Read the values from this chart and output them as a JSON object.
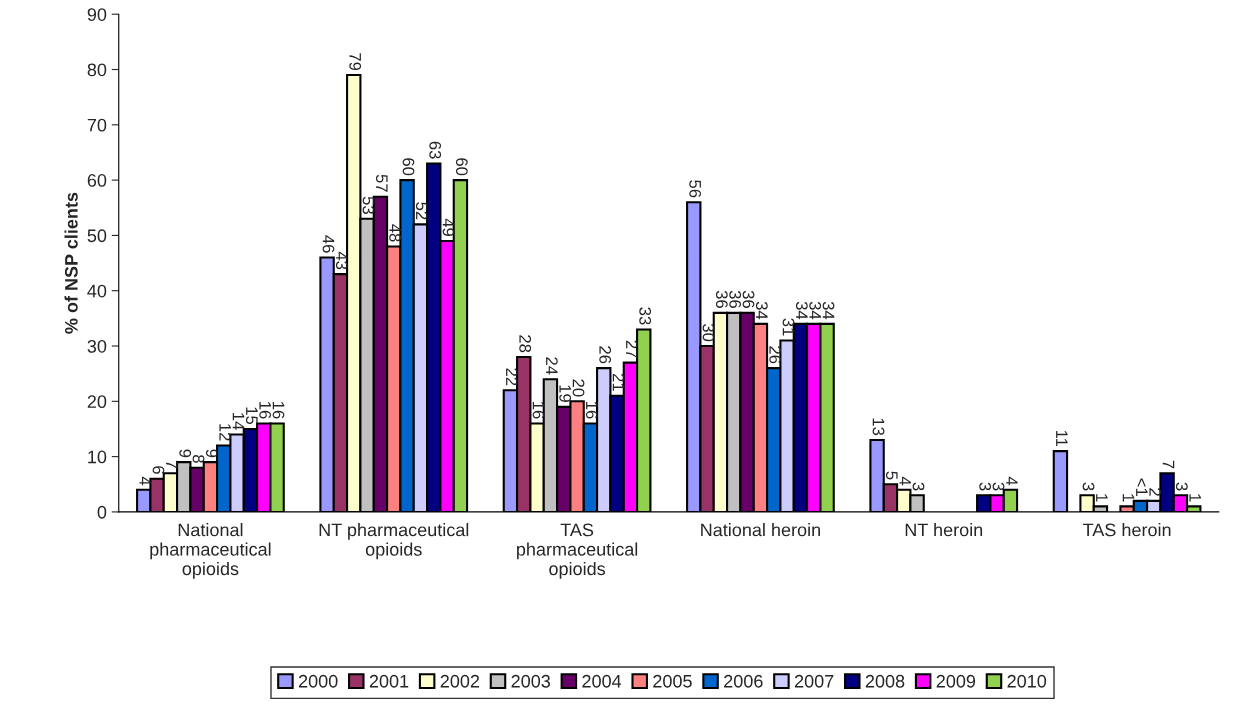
{
  "chart_data": {
    "type": "bar",
    "ylabel": "% of NSP clients",
    "categories": [
      "National\npharmaceutical\nopioids",
      "NT pharmaceutical\nopioids",
      "TAS\npharmaceutical\nopioids",
      "National heroin",
      "NT heroin",
      "TAS heroin"
    ],
    "ylim": [
      0,
      90
    ],
    "yticks": [
      0,
      10,
      20,
      30,
      40,
      50,
      60,
      70,
      80,
      90
    ],
    "grid": false,
    "legend": "bottom",
    "series": [
      {
        "name": "2000",
        "color": "#9999ff",
        "values": [
          4,
          46,
          22,
          56,
          13,
          11
        ],
        "value_labels": [
          "4",
          "46",
          "22",
          "56",
          "13",
          "11"
        ]
      },
      {
        "name": "2001",
        "color": "#993366",
        "values": [
          6,
          43,
          28,
          30,
          5,
          null
        ],
        "value_labels": [
          "6",
          "43",
          "28",
          "30",
          "5",
          null
        ]
      },
      {
        "name": "2002",
        "color": "#ffffcc",
        "values": [
          7,
          79,
          16,
          36,
          4,
          3
        ],
        "value_labels": [
          "7",
          "79",
          "16",
          "36",
          "4",
          "3"
        ]
      },
      {
        "name": "2003",
        "color": "#c0c0c0",
        "values": [
          9,
          53,
          24,
          36,
          3,
          1
        ],
        "value_labels": [
          "9",
          "53",
          "24",
          "36",
          "3",
          "1"
        ]
      },
      {
        "name": "2004",
        "color": "#660066",
        "values": [
          8,
          57,
          19,
          36,
          null,
          null
        ],
        "value_labels": [
          "8",
          "57",
          "19",
          "36",
          null,
          null
        ]
      },
      {
        "name": "2005",
        "color": "#ff8080",
        "values": [
          9,
          48,
          20,
          34,
          null,
          1
        ],
        "value_labels": [
          "9",
          "48",
          "20",
          "34",
          null,
          "1"
        ]
      },
      {
        "name": "2006",
        "color": "#0066cc",
        "values": [
          12,
          60,
          16,
          26,
          null,
          2
        ],
        "value_labels": [
          "12",
          "60",
          "16",
          "26",
          null,
          "<1"
        ]
      },
      {
        "name": "2007",
        "color": "#ccccff",
        "values": [
          14,
          52,
          26,
          31,
          null,
          2
        ],
        "value_labels": [
          "14",
          "52",
          "26",
          "31",
          null,
          "2"
        ]
      },
      {
        "name": "2008",
        "color": "#000080",
        "values": [
          15,
          63,
          21,
          34,
          3,
          7
        ],
        "value_labels": [
          "15",
          "63",
          "21",
          "34",
          "3",
          "7"
        ]
      },
      {
        "name": "2009",
        "color": "#ff00ff",
        "values": [
          16,
          49,
          27,
          34,
          3,
          3
        ],
        "value_labels": [
          "16",
          "49",
          "27",
          "34",
          "3",
          "3"
        ]
      },
      {
        "name": "2010",
        "color": "#92d050",
        "values": [
          16,
          60,
          33,
          34,
          4,
          1
        ],
        "value_labels": [
          "16",
          "60",
          "33",
          "34",
          "4",
          "1"
        ]
      }
    ]
  }
}
